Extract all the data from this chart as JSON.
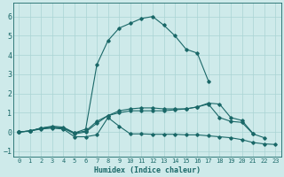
{
  "xlabel": "Humidex (Indice chaleur)",
  "background_color": "#ceeaea",
  "grid_color": "#aad4d4",
  "line_color": "#1a6868",
  "xlim": [
    -0.5,
    23.5
  ],
  "ylim": [
    -1.3,
    6.7
  ],
  "xticks": [
    0,
    1,
    2,
    3,
    4,
    5,
    6,
    7,
    8,
    9,
    10,
    11,
    12,
    13,
    14,
    15,
    16,
    17,
    18,
    19,
    20,
    21,
    22,
    23
  ],
  "yticks": [
    -1,
    0,
    1,
    2,
    3,
    4,
    5,
    6
  ],
  "lines": [
    {
      "x": [
        0,
        1,
        2,
        3,
        4,
        5,
        6,
        7,
        8,
        9,
        10,
        11,
        12,
        13,
        14,
        15,
        16,
        17,
        18,
        19,
        20,
        21,
        22,
        23
      ],
      "y": [
        0.0,
        0.05,
        0.15,
        0.2,
        0.15,
        -0.25,
        -0.25,
        -0.15,
        0.75,
        0.3,
        -0.1,
        -0.1,
        -0.12,
        -0.12,
        -0.12,
        -0.15,
        -0.15,
        -0.2,
        -0.25,
        -0.3,
        -0.4,
        -0.55,
        -0.62,
        -0.65
      ]
    },
    {
      "x": [
        0,
        1,
        2,
        3,
        4,
        5,
        6,
        7,
        8,
        9,
        10,
        11,
        12,
        13,
        14,
        15,
        16,
        17,
        18,
        19,
        20,
        21,
        22
      ],
      "y": [
        0.0,
        0.05,
        0.2,
        0.25,
        0.2,
        -0.1,
        0.0,
        0.45,
        0.85,
        1.0,
        1.1,
        1.1,
        1.1,
        1.1,
        1.15,
        1.2,
        1.3,
        1.45,
        0.75,
        0.55,
        0.5,
        -0.1,
        -0.3
      ]
    },
    {
      "x": [
        0,
        1,
        2,
        3,
        4,
        5,
        6,
        7,
        8,
        9,
        10,
        11,
        12,
        13,
        14,
        15,
        16,
        17,
        18,
        19,
        20,
        21
      ],
      "y": [
        0.0,
        0.05,
        0.2,
        0.25,
        0.2,
        -0.05,
        0.05,
        0.55,
        0.85,
        1.1,
        1.2,
        1.25,
        1.25,
        1.2,
        1.2,
        1.2,
        1.3,
        1.5,
        1.45,
        0.75,
        0.6,
        -0.08
      ]
    },
    {
      "x": [
        0,
        1,
        2,
        3,
        4,
        5,
        6,
        7,
        8,
        9,
        10,
        11,
        12,
        13,
        14,
        15,
        16,
        17
      ],
      "y": [
        0.0,
        0.05,
        0.2,
        0.3,
        0.25,
        -0.05,
        0.15,
        3.5,
        4.75,
        5.4,
        5.65,
        5.9,
        6.0,
        5.55,
        5.0,
        4.3,
        4.1,
        2.65
      ]
    }
  ]
}
